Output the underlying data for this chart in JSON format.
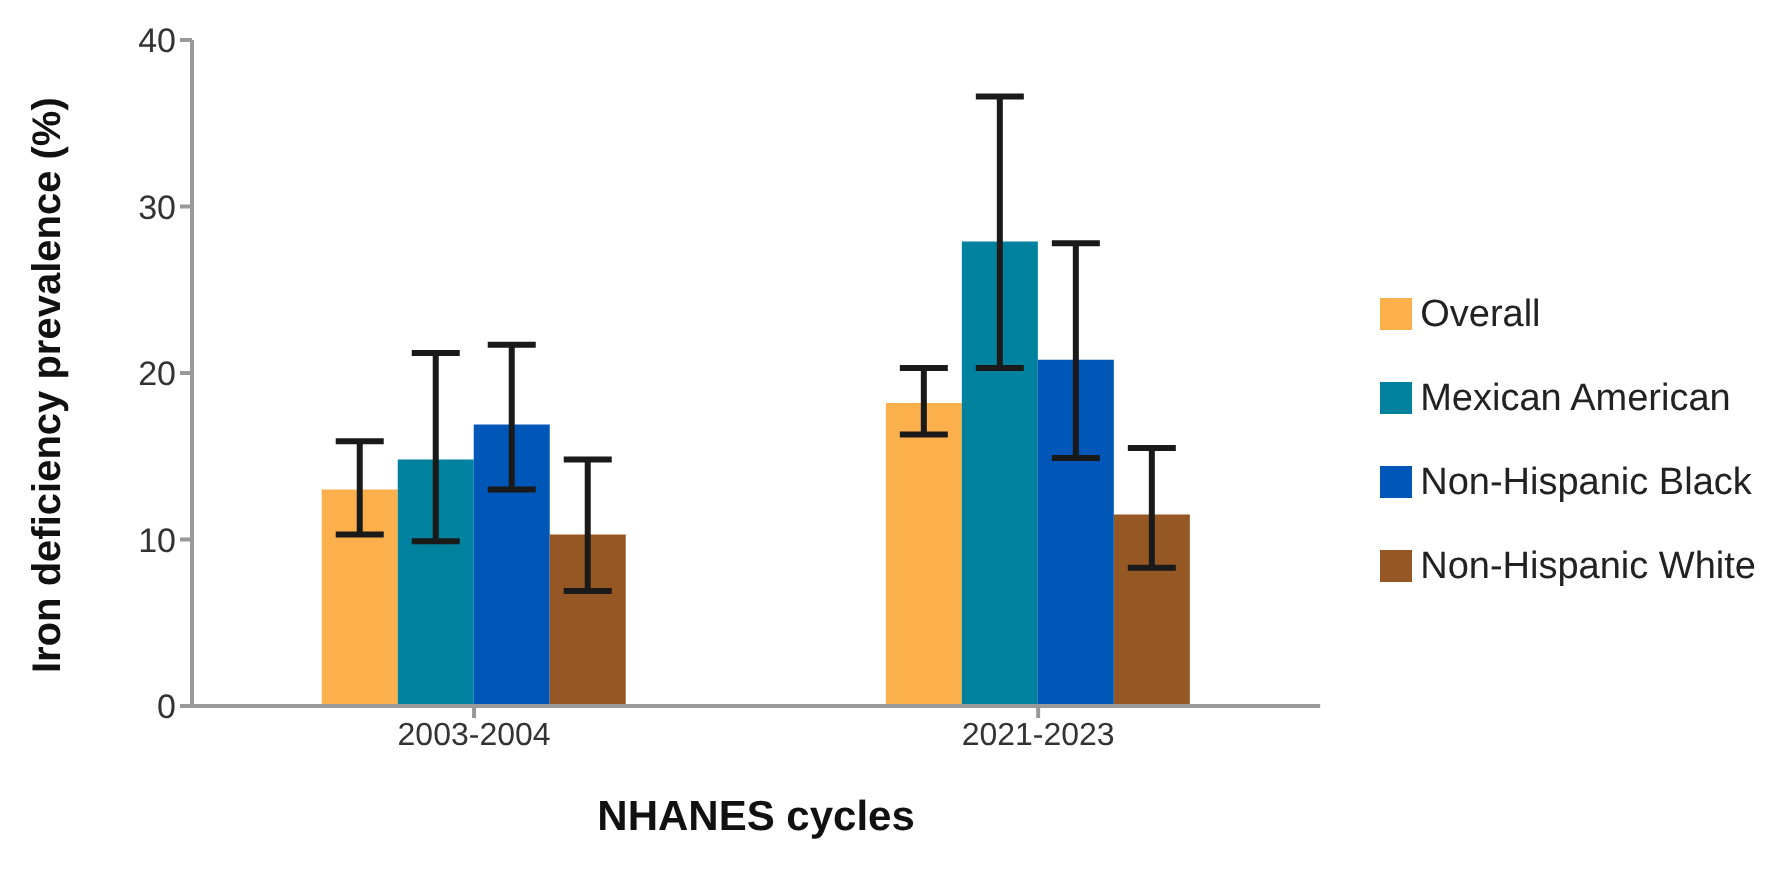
{
  "chart_data": {
    "type": "bar",
    "xlabel": "NHANES cycles",
    "ylabel": "Iron deficiency prevalence (%)",
    "categories": [
      "2003-2004",
      "2021-2023"
    ],
    "series": [
      {
        "name": "Overall",
        "color": "#fbb04c",
        "values": [
          13,
          18.2
        ],
        "errors": [
          [
            10.3,
            15.9
          ],
          [
            16.3,
            20.3
          ]
        ]
      },
      {
        "name": "Mexican American",
        "color": "#00829f",
        "values": [
          14.8,
          27.9
        ],
        "errors": [
          [
            9.9,
            21.2
          ],
          [
            20.3,
            36.6
          ]
        ]
      },
      {
        "name": "Non-Hispanic Black",
        "color": "#0057b8",
        "values": [
          16.9,
          20.8
        ],
        "errors": [
          [
            13,
            21.7
          ],
          [
            14.9,
            27.8
          ]
        ]
      },
      {
        "name": "Non-Hispanic White",
        "color": "#955724",
        "values": [
          10.3,
          11.5
        ],
        "errors": [
          [
            6.9,
            14.8
          ],
          [
            8.3,
            15.5
          ]
        ]
      }
    ],
    "ylim": [
      0,
      40
    ],
    "yticks": [
      0,
      10,
      20,
      30,
      40
    ],
    "grid": false,
    "legend": "right"
  }
}
